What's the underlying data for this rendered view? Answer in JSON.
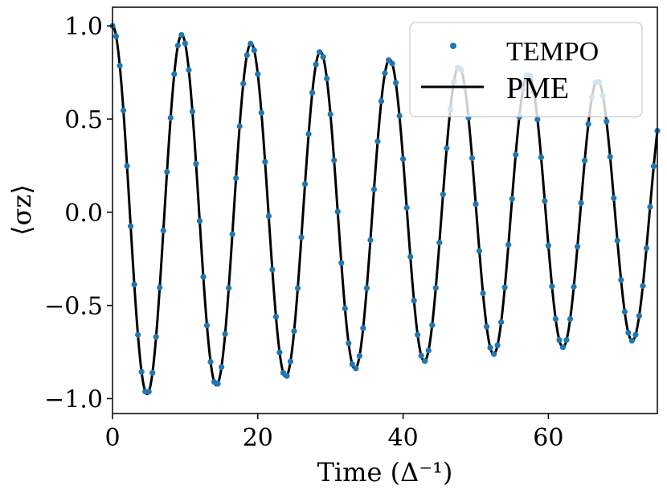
{
  "chart_data": {
    "type": "line",
    "title": "",
    "xlabel": "Time (Δ⁻¹)",
    "ylabel": "⟨σz⟩",
    "xlim": [
      0,
      75
    ],
    "ylim": [
      -1.08,
      1.1
    ],
    "xticks": [
      0,
      20,
      40,
      60
    ],
    "xtick_labels": [
      "0",
      "20",
      "40",
      "60"
    ],
    "yticks": [
      1.0,
      0.5,
      0.0,
      -0.5,
      -1.0
    ],
    "ytick_labels": [
      "1.0",
      "0.5",
      "0.0",
      "−0.5",
      "−1.0"
    ],
    "grid": false,
    "legend": {
      "position": "top-right",
      "entries": [
        "TEMPO",
        "PME"
      ]
    },
    "series": [
      {
        "name": "TEMPO",
        "style": "markers",
        "color": "#1f77b4",
        "x_start": 0,
        "x_step": 0.5,
        "count": 151,
        "model": "damped cosine",
        "period": 9.54,
        "decay_rate": 0.0052
      },
      {
        "name": "PME",
        "style": "line",
        "color": "#000000",
        "x_start": 0,
        "x_step": 0.1,
        "count": 751,
        "model": "damped cosine",
        "period": 9.54,
        "decay_rate": 0.0052
      }
    ],
    "key_points": {
      "x": [
        0,
        4.77,
        9.54,
        14.31,
        19.08,
        23.85,
        28.62,
        33.39,
        38.16,
        42.93,
        47.7,
        52.47,
        57.24,
        62.01,
        66.78,
        71.55
      ],
      "y": [
        1.0,
        -0.976,
        0.952,
        -0.929,
        0.906,
        -0.884,
        0.862,
        -0.841,
        0.82,
        -0.8,
        0.78,
        -0.761,
        0.742,
        -0.724,
        0.706,
        -0.689
      ]
    }
  }
}
